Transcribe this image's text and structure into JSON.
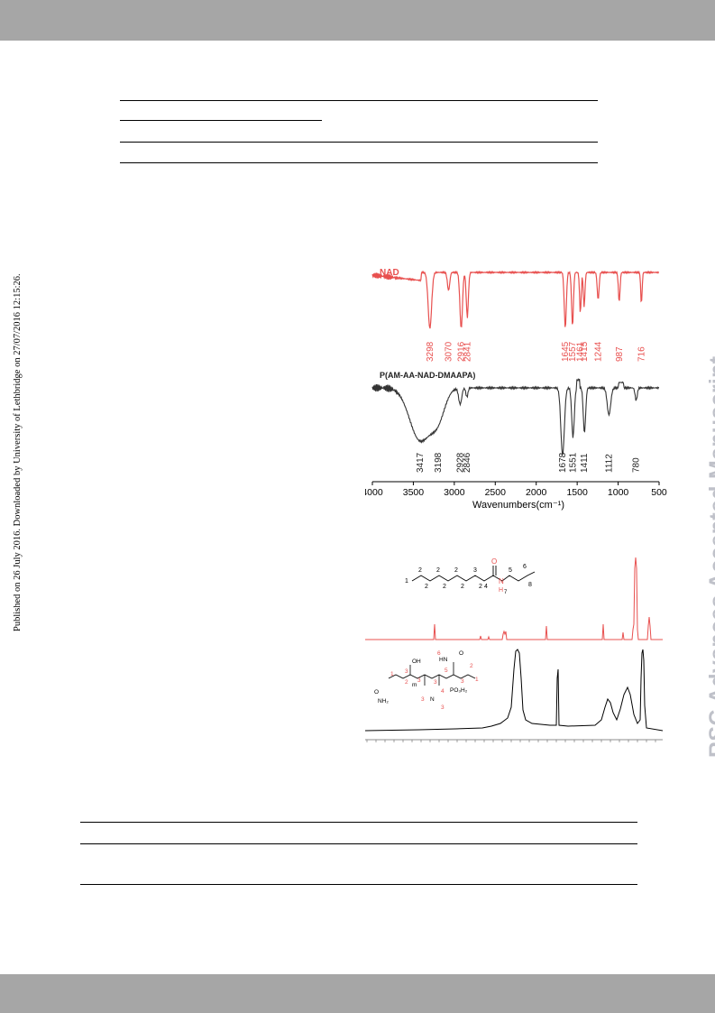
{
  "page": {
    "side_note": "Published on 26 July 2016. Downloaded by University of Lethbridge on 27/07/2016 12:15:26.",
    "watermark": "RSC Advances Accepted Manuscript"
  },
  "colors": {
    "band": "#a6a6a6",
    "nad": "#e8504f",
    "polymer": "#333333",
    "watermark": "#bfc1c9"
  },
  "ir_figure": {
    "chart_data": {
      "type": "line",
      "xlabel": "Wavenumbers(cm⁻¹)",
      "xlim": [
        4000,
        500
      ],
      "x_ticks": [
        "4000",
        "3500",
        "3000",
        "2500",
        "2000",
        "1500",
        "1000",
        "500"
      ],
      "series": [
        {
          "name": "NAD",
          "peaks": [
            {
              "x": 3298,
              "label": "3298"
            },
            {
              "x": 3070,
              "label": "3070"
            },
            {
              "x": 2916,
              "label": "2916"
            },
            {
              "x": 2841,
              "label": "2841"
            },
            {
              "x": 1645,
              "label": "1645"
            },
            {
              "x": 1557,
              "label": "1557"
            },
            {
              "x": 1461,
              "label": "1461"
            },
            {
              "x": 1415,
              "label": "1415"
            },
            {
              "x": 1244,
              "label": "1244"
            },
            {
              "x": 987,
              "label": "987"
            },
            {
              "x": 716,
              "label": "716"
            }
          ]
        },
        {
          "name": "P(AM-AA-NAD-DMAAPA)",
          "peaks": [
            {
              "x": 3417,
              "label": "3417"
            },
            {
              "x": 3198,
              "label": "3198"
            },
            {
              "x": 2928,
              "label": "2928"
            },
            {
              "x": 2846,
              "label": "2846"
            },
            {
              "x": 1678,
              "label": "1678"
            },
            {
              "x": 1551,
              "label": "1551"
            },
            {
              "x": 1411,
              "label": "1411"
            },
            {
              "x": 1112,
              "label": "1112"
            },
            {
              "x": 780,
              "label": "780"
            }
          ]
        }
      ]
    }
  },
  "nmr_figure": {
    "nad_structure_labels": [
      "1",
      "2",
      "2",
      "2",
      "3",
      "2",
      "2",
      "2",
      "2",
      "4",
      "5",
      "6",
      "7",
      "8",
      "O",
      "N",
      "H"
    ],
    "polymer_structure_labels": [
      "OH",
      "O",
      "NH₂",
      "6",
      "HN",
      "O",
      "5",
      "3",
      "2",
      "1",
      "3",
      "4",
      "3",
      "PO₃H₂",
      "3",
      "N",
      "3",
      "2",
      "3",
      "1",
      "m"
    ]
  }
}
